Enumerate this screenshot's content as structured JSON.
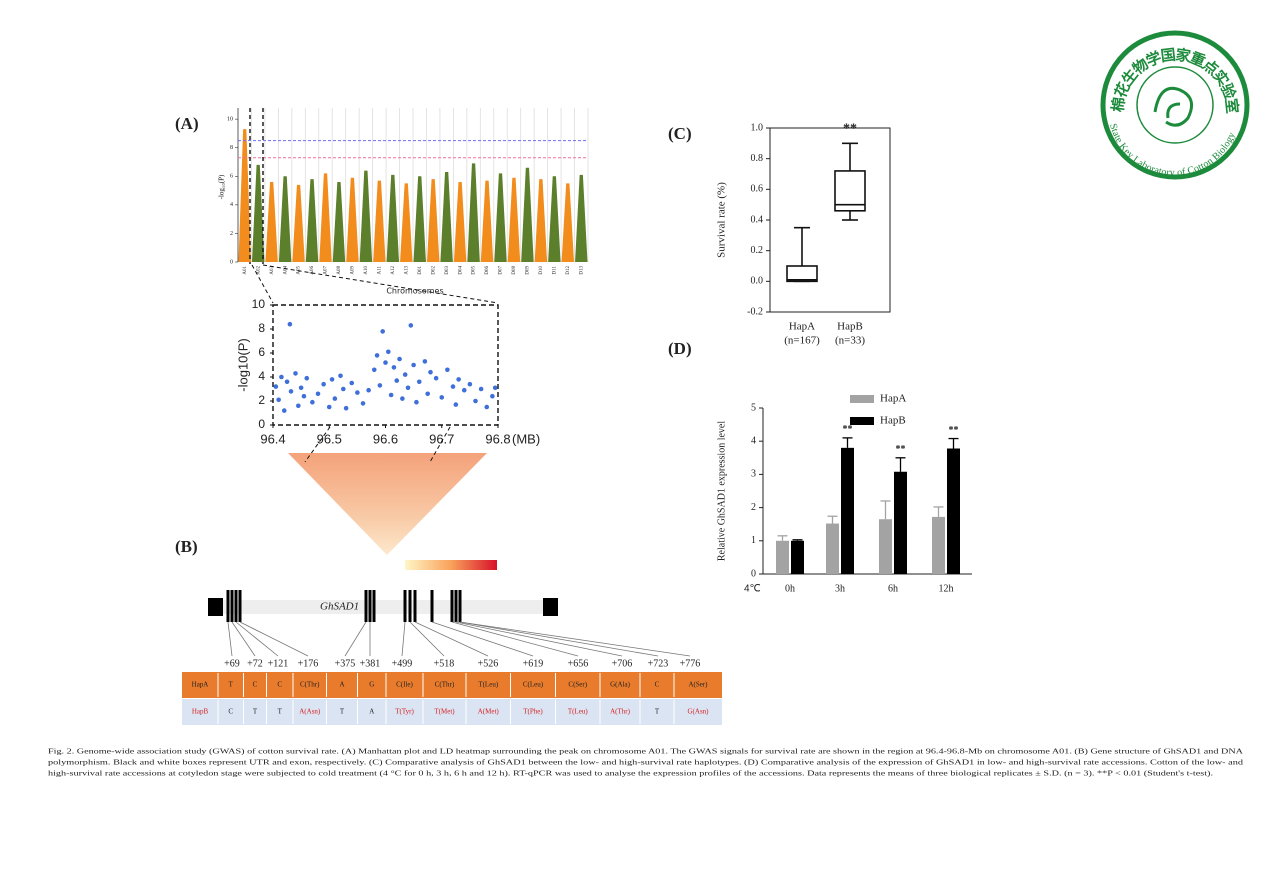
{
  "panel_labels": [
    "(A)",
    "(B)",
    "(C)",
    "(D)"
  ],
  "manhattan": {
    "type": "bar",
    "ylabel": "-log₁₀(P)",
    "xlabel": "Chromosomes",
    "categories": [
      "A01",
      "A02",
      "A03",
      "A04",
      "A05",
      "A06",
      "A07",
      "A08",
      "A09",
      "A10",
      "A11",
      "A12",
      "A13",
      "D01",
      "D02",
      "D03",
      "D04",
      "D05",
      "D06",
      "D07",
      "D08",
      "D09",
      "D10",
      "D11",
      "D12",
      "D13"
    ],
    "values": [
      9.3,
      6.8,
      5.6,
      6.0,
      5.4,
      5.8,
      6.2,
      5.6,
      5.9,
      6.4,
      5.7,
      6.1,
      5.5,
      6.0,
      5.8,
      6.3,
      5.6,
      6.9,
      5.7,
      6.2,
      5.9,
      6.6,
      5.8,
      6.0,
      5.5,
      6.1
    ],
    "colors": [
      "#f28c1c",
      "#5b7f2a"
    ],
    "ylim": [
      0,
      10.5
    ],
    "yticks": [
      0,
      2,
      4,
      6,
      8,
      10
    ],
    "thresholds": [
      {
        "value": 8.5,
        "color": "#6f6ff2"
      },
      {
        "value": 7.3,
        "color": "#f0709c"
      }
    ]
  },
  "region": {
    "type": "scatter",
    "ylabel": "-log10(P)",
    "xunit": "(MB)",
    "color": "#3f6fd8",
    "x": [
      96.405,
      96.41,
      96.415,
      96.42,
      96.425,
      96.43,
      96.432,
      96.44,
      96.445,
      96.45,
      96.455,
      96.46,
      96.47,
      96.48,
      96.49,
      96.5,
      96.505,
      96.51,
      96.52,
      96.525,
      96.53,
      96.54,
      96.55,
      96.56,
      96.57,
      96.58,
      96.585,
      96.59,
      96.595,
      96.6,
      96.605,
      96.61,
      96.615,
      96.62,
      96.625,
      96.63,
      96.635,
      96.64,
      96.645,
      96.65,
      96.655,
      96.66,
      96.67,
      96.675,
      96.68,
      96.69,
      96.7,
      96.71,
      96.72,
      96.725,
      96.73,
      96.74,
      96.75,
      96.76,
      96.77,
      96.78,
      96.79,
      96.795
    ],
    "y": [
      3.2,
      2.1,
      4.0,
      1.2,
      3.6,
      8.4,
      2.8,
      4.3,
      1.6,
      3.1,
      2.4,
      3.9,
      1.9,
      2.6,
      3.4,
      1.5,
      3.8,
      2.2,
      4.1,
      3.0,
      1.4,
      3.5,
      2.7,
      1.8,
      2.9,
      4.6,
      5.8,
      3.3,
      7.8,
      5.2,
      6.1,
      2.5,
      4.8,
      3.7,
      5.5,
      2.2,
      4.2,
      3.1,
      8.3,
      5.0,
      1.9,
      3.6,
      5.3,
      2.6,
      4.4,
      3.9,
      2.3,
      4.6,
      3.2,
      1.7,
      3.8,
      2.9,
      3.4,
      2.0,
      3.0,
      1.5,
      2.4,
      3.1
    ],
    "xlim": [
      96.4,
      96.8
    ],
    "xticks": [
      96.4,
      96.5,
      96.6,
      96.7,
      96.8
    ],
    "ylim": [
      0,
      10
    ],
    "yticks": [
      0,
      2,
      4,
      6,
      8,
      10
    ]
  },
  "gene": {
    "name": "GhSAD1",
    "positions": [
      "+69",
      "+72",
      "+121",
      "+176",
      "+375",
      "+381",
      "+499",
      "+518",
      "+526",
      "+619",
      "+656",
      "+706",
      "+723",
      "+776"
    ],
    "rows": [
      [
        "HapA",
        "T",
        "C",
        "C",
        "C(Thr)",
        "A",
        "G",
        "C(Ile)",
        "C(Thr)",
        "T(Leu)",
        "C(Leu)",
        "C(Ser)",
        "G(Ala)",
        "C",
        "A(Ser)"
      ],
      [
        "HapB",
        "C",
        "T",
        "T",
        "A(Asn)",
        "T",
        "A",
        "T(Tyr)",
        "T(Met)",
        "A(Met)",
        "T(Phe)",
        "T(Leu)",
        "A(Thr)",
        "T",
        "G(Asn)"
      ]
    ]
  },
  "survival": {
    "type": "box",
    "ylabel": "Survival rate (%)",
    "categories": [
      "HapA",
      "HapB"
    ],
    "counts": [
      "(n=167)",
      "(n=33)"
    ],
    "boxes": [
      {
        "min": 0,
        "q1": 0,
        "median": 0.01,
        "q3": 0.1,
        "max": 0.35
      },
      {
        "min": 0.4,
        "q1": 0.46,
        "median": 0.5,
        "q3": 0.72,
        "max": 0.9
      }
    ],
    "annotation": "**",
    "ylim": [
      -0.2,
      1.0
    ],
    "yticks": [
      -0.2,
      {
        "value": 0,
        "label": "0.0"
      },
      0.2,
      0.4,
      0.6,
      0.8,
      {
        "value": 1,
        "label": "1.0"
      }
    ]
  },
  "expression": {
    "type": "bar",
    "ylabel": "Relative GhSAD1 expression level",
    "x_prefix": "4℃",
    "categories": [
      "0h",
      "3h",
      "6h",
      "12h"
    ],
    "series": [
      {
        "name": "HapA",
        "color": "#a3a3a3",
        "values": [
          1.0,
          1.52,
          1.65,
          1.72
        ],
        "errors": [
          0.15,
          0.22,
          0.55,
          0.3
        ]
      },
      {
        "name": "HapB",
        "color": "#000000",
        "values": [
          1.0,
          3.8,
          3.08,
          3.78
        ],
        "errors": [
          0.03,
          0.3,
          0.42,
          0.3
        ]
      }
    ],
    "annotations": [
      "**",
      "**",
      "**"
    ],
    "annotation_categories": [
      "3h",
      "6h",
      "12h"
    ],
    "ylim": [
      0,
      5
    ],
    "yticks": [
      0,
      1,
      2,
      3,
      4,
      5
    ]
  },
  "caption": [
    "Fig. 2. Genome-wide association study (GWAS) of cotton survival rate. (A) Manhattan plot and LD heatmap surrounding the peak on chromosome A01. The GWAS signals for survival rate are shown in the region at 96.4-96.8-Mb on chromosome A01. (B) Gene structure of GhSAD1 and DNA",
    "polymorphism. Black and white boxes represent UTR and exon, respectively. (C) Comparative analysis of GhSAD1 between the low- and high-survival rate haplotypes. (D) Comparative analysis of the expression of GhSAD1 in low- and high-survival rate accessions. Cotton of the low- and",
    "high-survival rate accessions at cotyledon stage were subjected to cold treatment (4 °C for 0 h, 3 h, 6 h and 12 h). RT-qPCR was used to analyse the expression profiles of the accessions. Data represents the means of three biological replicates ± S.D. (n = 3). **P < 0.01 (Student's t-test)."
  ],
  "logo": {
    "chinese": "棉花生物学国家重点实验室",
    "english": "State Key Laboratory of Cotton Biology"
  }
}
